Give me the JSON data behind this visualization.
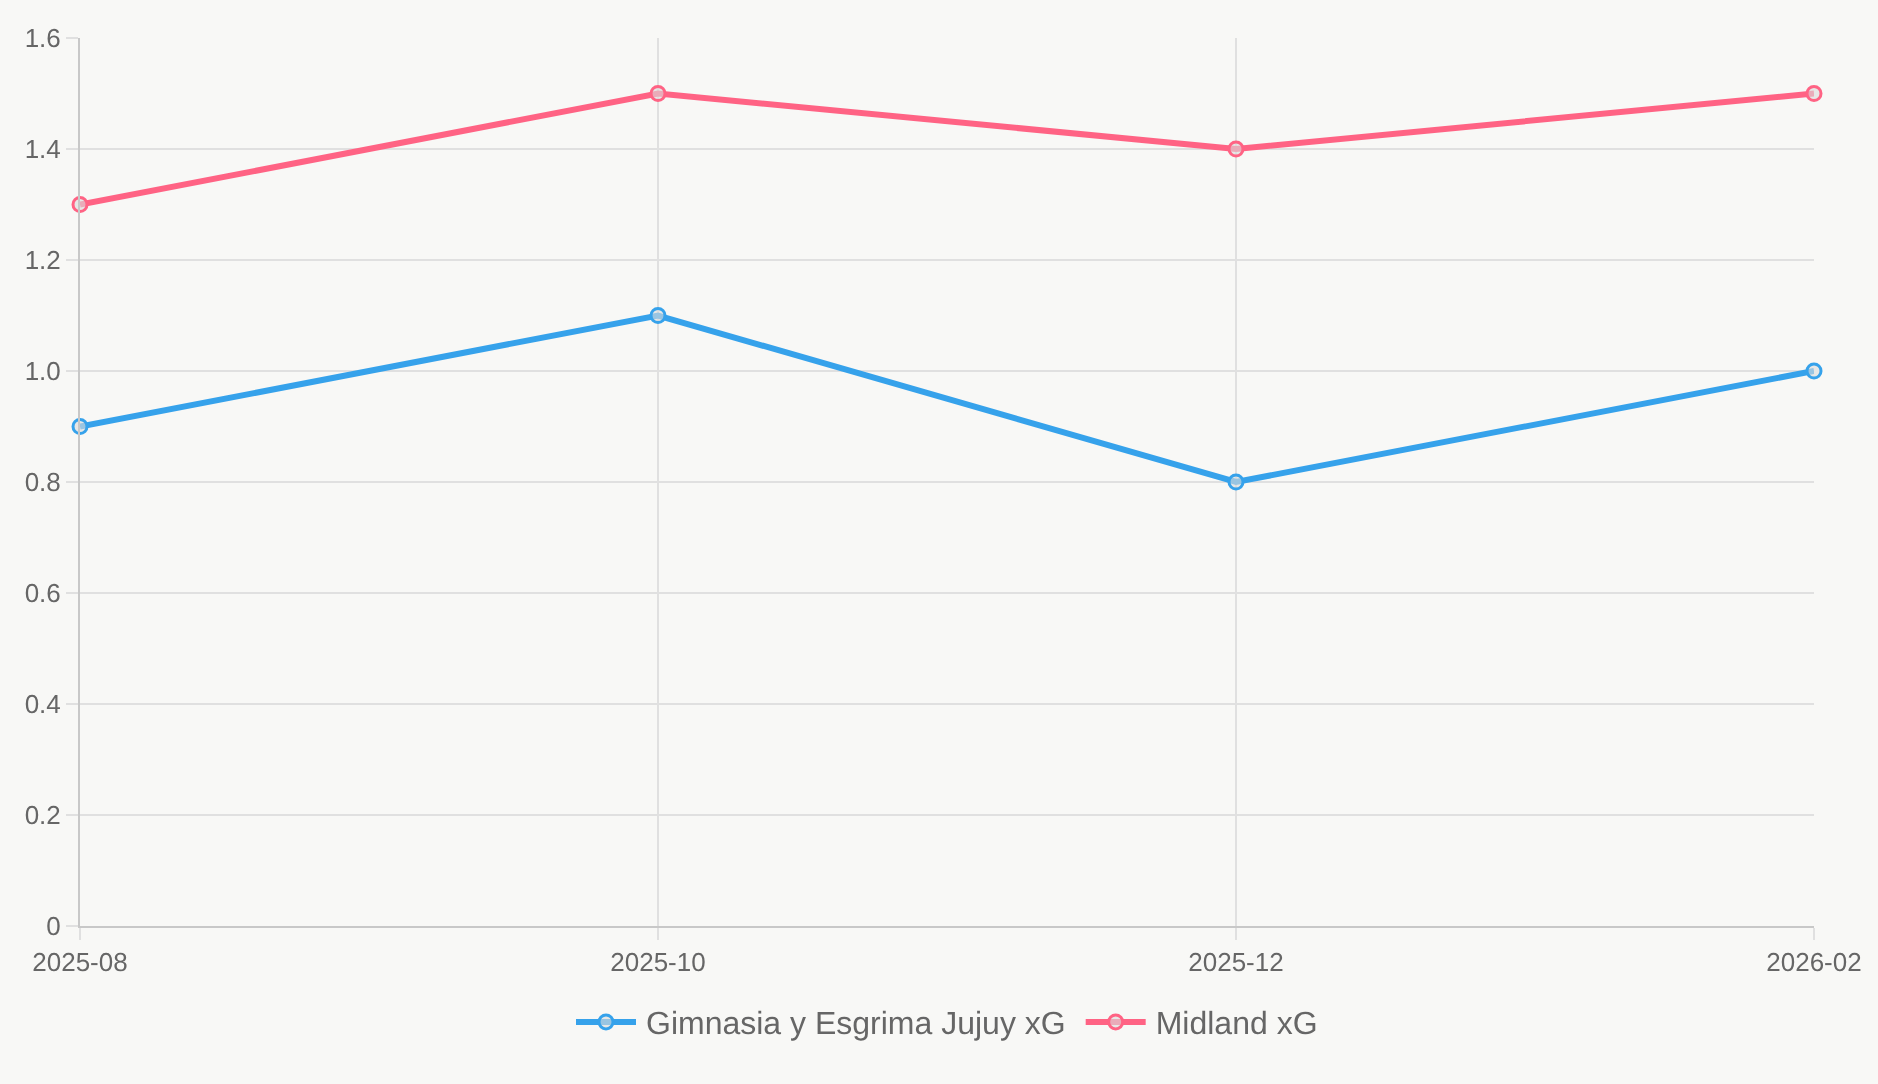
{
  "chart_data": {
    "type": "line",
    "categories": [
      "2025-08",
      "2025-10",
      "2025-12",
      "2026-02"
    ],
    "series": [
      {
        "name": "Gimnasia y Esgrima Jujuy xG",
        "color": "#36a2eb",
        "values": [
          0.9,
          1.1,
          0.8,
          1.0
        ]
      },
      {
        "name": "Midland xG",
        "color": "#ff6384",
        "values": [
          1.3,
          1.5,
          1.4,
          1.5
        ]
      }
    ],
    "ylim": [
      0,
      1.6
    ],
    "yticks": [
      {
        "value": 0,
        "label": "0"
      },
      {
        "value": 0.2,
        "label": "0.2"
      },
      {
        "value": 0.4,
        "label": "0.4"
      },
      {
        "value": 0.6,
        "label": "0.6"
      },
      {
        "value": 0.8,
        "label": "0.8"
      },
      {
        "value": 1.0,
        "label": "1.0"
      },
      {
        "value": 1.2,
        "label": "1.2"
      },
      {
        "value": 1.4,
        "label": "1.4"
      },
      {
        "value": 1.6,
        "label": "1.6"
      }
    ],
    "grid": true,
    "legend": "bottom",
    "marker": "circle",
    "line_style": "solid"
  }
}
